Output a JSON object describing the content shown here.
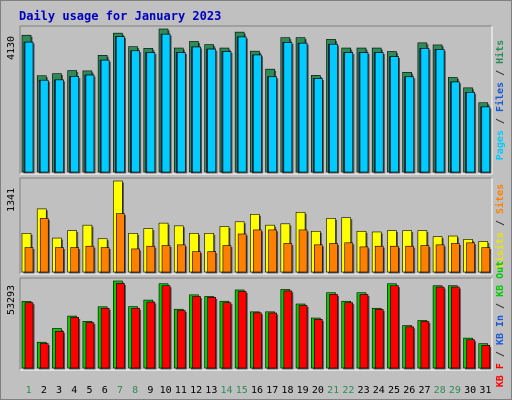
{
  "chart_data": {
    "type": "bar",
    "title": "Daily usage for January 2023",
    "x": [
      "1",
      "2",
      "3",
      "4",
      "5",
      "6",
      "7",
      "8",
      "9",
      "10",
      "11",
      "12",
      "13",
      "14",
      "15",
      "16",
      "17",
      "18",
      "19",
      "20",
      "21",
      "22",
      "23",
      "24",
      "25",
      "26",
      "27",
      "28",
      "29",
      "30",
      "31"
    ],
    "weekend_days": [
      "1",
      "7",
      "8",
      "14",
      "15",
      "21",
      "22",
      "28",
      "29"
    ],
    "panels": [
      {
        "id": "hits",
        "ymax_label": "4130",
        "ymax": 4130,
        "label_parts": [
          {
            "text": "Pages",
            "color": "#00ccff"
          },
          {
            "text": " / ",
            "color": "#333333"
          },
          {
            "text": "Files",
            "color": "#1a5ad8"
          },
          {
            "text": " / ",
            "color": "#333333"
          },
          {
            "text": "Hits",
            "color": "#2e8b57"
          }
        ],
        "series": [
          {
            "name": "Hits",
            "color": "#2e8b57",
            "values": [
              3950,
              2780,
              2840,
              2930,
              2920,
              3370,
              4010,
              3620,
              3570,
              4130,
              3580,
              3770,
              3680,
              3580,
              4040,
              3490,
              2970,
              3880,
              3880,
              2790,
              3830,
              3580,
              3580,
              3580,
              3480,
              2880,
              3730,
              3670,
              2730,
              2430,
              2000
            ]
          },
          {
            "name": "Files",
            "color": "#1a5ad8",
            "values": [
              3750,
              2650,
              2660,
              2760,
              2800,
              3230,
              3910,
              3500,
              3450,
              3980,
              3450,
              3610,
              3550,
              3480,
              3900,
              3380,
              2750,
              3740,
              3720,
              2700,
              3690,
              3450,
              3450,
              3450,
              3330,
              2750,
              3570,
              3540,
              2600,
              2300,
              1880
            ]
          },
          {
            "name": "Pages",
            "color": "#00ccff",
            "values": [
              3750,
              2650,
              2660,
              2760,
              2800,
              3230,
              3910,
              3500,
              3450,
              3980,
              3450,
              3610,
              3550,
              3480,
              3900,
              3380,
              2750,
              3740,
              3720,
              2700,
              3690,
              3450,
              3450,
              3450,
              3330,
              2750,
              3570,
              3540,
              2600,
              2300,
              1880
            ]
          }
        ]
      },
      {
        "id": "visits",
        "ymax_label": "1341",
        "ymax": 1341,
        "label_parts": [
          {
            "text": "Visits",
            "color": "#e8e800"
          },
          {
            "text": " / ",
            "color": "#333333"
          },
          {
            "text": "Sites",
            "color": "#ff8000"
          }
        ],
        "series": [
          {
            "name": "Visits",
            "color": "#ffff00",
            "values": [
              570,
              930,
              500,
              610,
              690,
              490,
              1341,
              570,
              640,
              720,
              680,
              570,
              570,
              670,
              740,
              850,
              690,
              710,
              880,
              600,
              790,
              800,
              600,
              590,
              610,
              610,
              610,
              520,
              530,
              480,
              450
            ]
          },
          {
            "name": "Sites",
            "color": "#ff8000",
            "values": [
              360,
              790,
              360,
              360,
              380,
              360,
              860,
              340,
              380,
              390,
              400,
              300,
              300,
              390,
              560,
              620,
              620,
              420,
              620,
              400,
              420,
              430,
              370,
              380,
              380,
              380,
              390,
              400,
              420,
              430,
              360
            ]
          }
        ]
      },
      {
        "id": "kbytes",
        "ymax_label": "53293",
        "ymax": 53293,
        "label_parts": [
          {
            "text": "KB F",
            "color": "#ff0000"
          },
          {
            "text": " / ",
            "color": "#333333"
          },
          {
            "text": "KB In",
            "color": "#1a5ad8"
          },
          {
            "text": " / ",
            "color": "#333333"
          },
          {
            "text": "KB Out",
            "color": "#00cc00"
          }
        ],
        "series": [
          {
            "name": "KB Out",
            "color": "#00cc00",
            "values": [
              40800,
              15800,
              24200,
              31800,
              28600,
              37500,
              53293,
              37600,
              41600,
              51600,
              36000,
              44800,
              43800,
              40900,
              47800,
              34400,
              34400,
              48100,
              39200,
              30600,
              46100,
              40900,
              46100,
              36600,
              51600,
              26000,
              29100,
              50400,
              50400,
              18300,
              14900
            ]
          },
          {
            "name": "KB F",
            "color": "#ff0000",
            "values": [
              40000,
              15000,
              22500,
              31000,
              27800,
              36600,
              51800,
              36600,
              40400,
              50400,
              35200,
              43800,
              43300,
              40000,
              46900,
              33800,
              33700,
              47200,
              38300,
              29800,
              45100,
              40000,
              45000,
              35900,
              50400,
              25200,
              28500,
              49600,
              49600,
              17300,
              13900
            ]
          }
        ]
      }
    ]
  }
}
